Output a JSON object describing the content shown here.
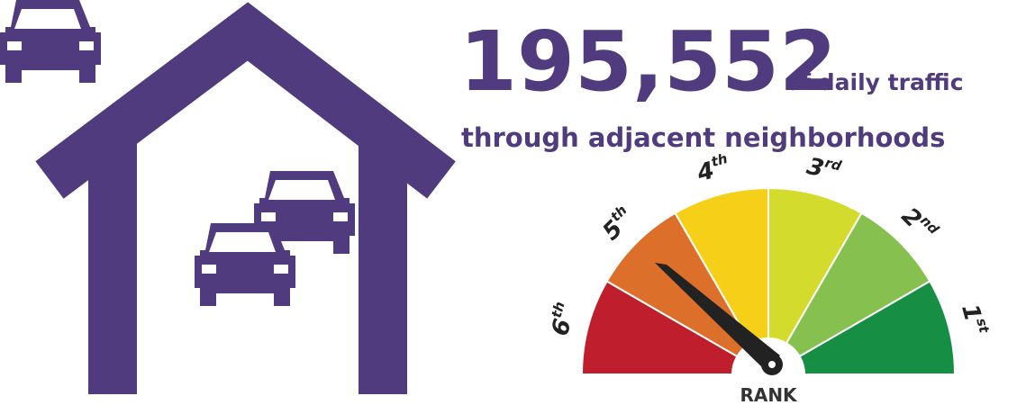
{
  "headline": {
    "number": "195,552",
    "suffix": "of daily traffic",
    "subtitle": "through adjacent neighborhoods"
  },
  "gauge": {
    "label": "RANK",
    "ranks": [
      {
        "num": "6",
        "ord": "th",
        "color": "#bf1e2d"
      },
      {
        "num": "5",
        "ord": "th",
        "color": "#dc6f29"
      },
      {
        "num": "4",
        "ord": "th",
        "color": "#f6d018"
      },
      {
        "num": "3",
        "ord": "rd",
        "color": "#d3dc2c"
      },
      {
        "num": "2",
        "ord": "nd",
        "color": "#86c04f"
      },
      {
        "num": "1",
        "ord": "st",
        "color": "#168f45"
      }
    ]
  }
}
